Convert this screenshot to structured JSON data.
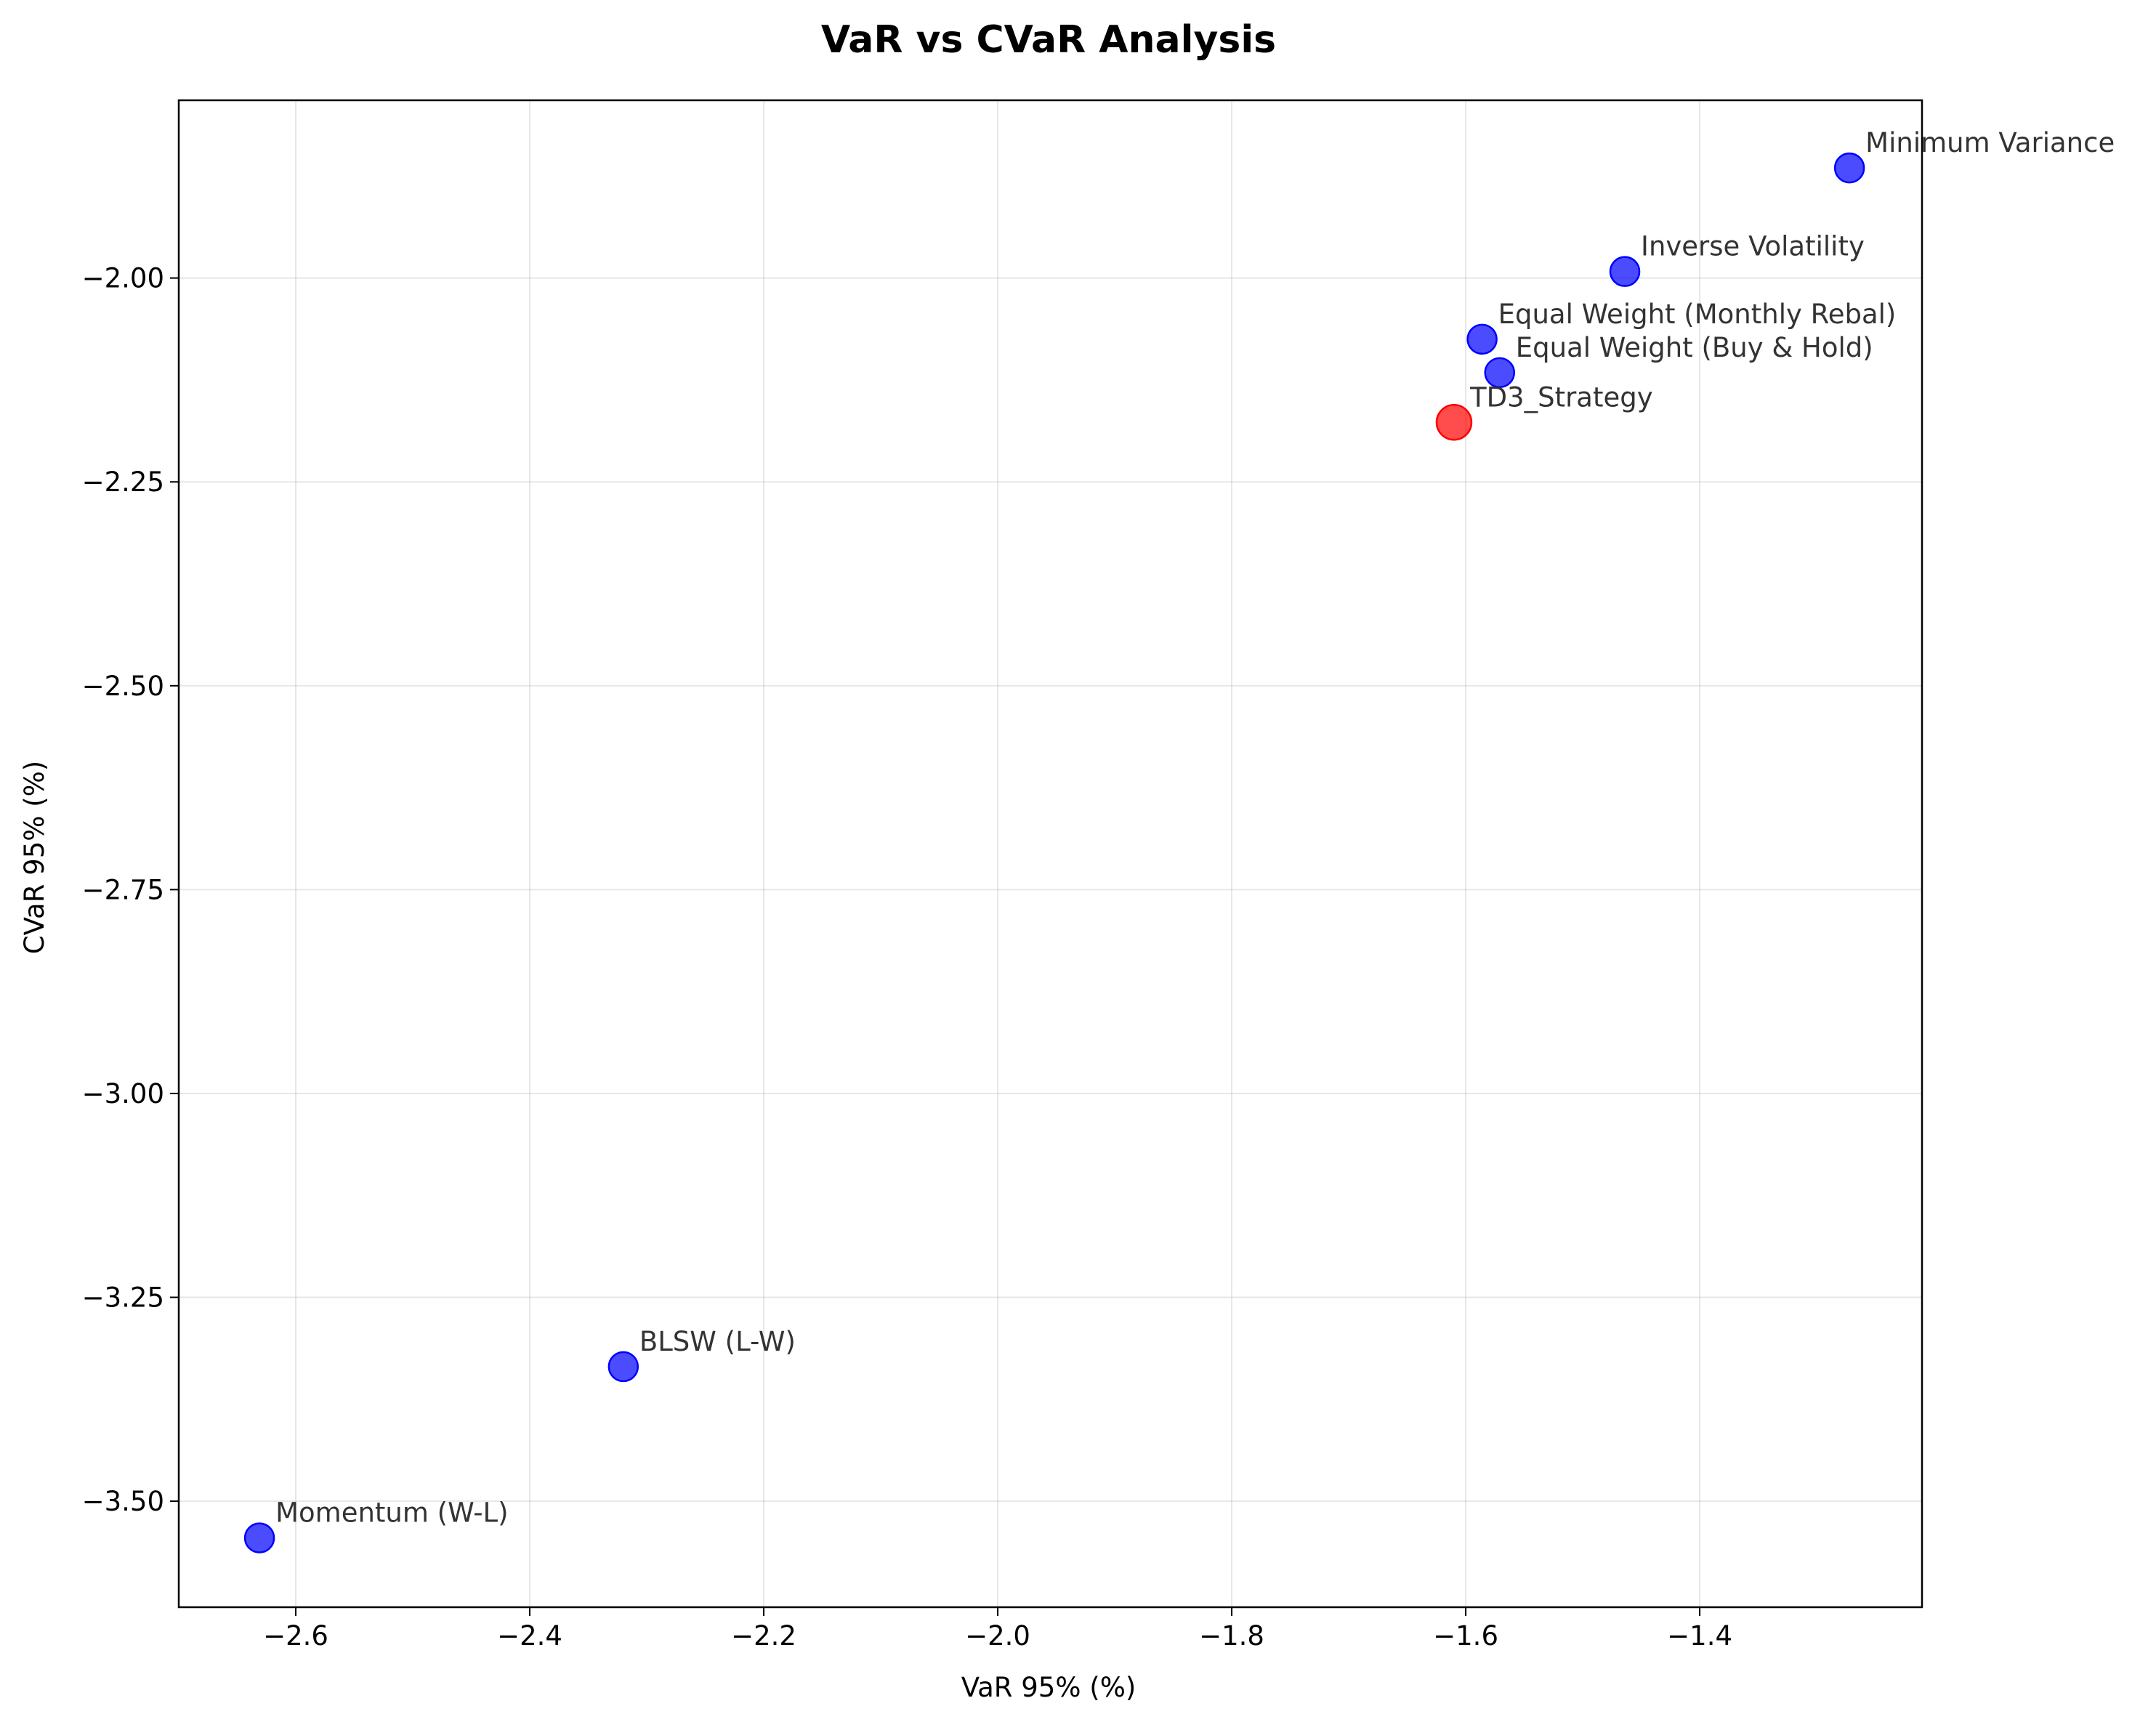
{
  "chart_data": {
    "type": "scatter",
    "title": "VaR vs CVaR Analysis",
    "xlabel": "VaR 95% (%)",
    "ylabel": "CVaR 95% (%)",
    "xlim": [
      -2.7,
      -1.21
    ],
    "ylim": [
      -3.63,
      -1.782
    ],
    "xticks": [
      -2.6,
      -2.4,
      -2.2,
      -2.0,
      -1.8,
      -1.6,
      -1.4
    ],
    "xtick_labels": [
      "−2.6",
      "−2.4",
      "−2.2",
      "−2.0",
      "−1.8",
      "−1.6",
      "−1.4"
    ],
    "yticks": [
      -2.0,
      -2.25,
      -2.5,
      -2.75,
      -3.0,
      -3.25,
      -3.5
    ],
    "ytick_labels": [
      "−2.00",
      "−2.25",
      "−2.50",
      "−2.75",
      "−3.00",
      "−3.25",
      "−3.50"
    ],
    "grid": true,
    "colors": {
      "highlight": "#ff0000",
      "default": "#0000ff"
    },
    "points": [
      {
        "label": "Minimum Variance",
        "x": -1.272,
        "y": -1.865,
        "highlight": false
      },
      {
        "label": "Inverse Volatility",
        "x": -1.464,
        "y": -1.992,
        "highlight": false
      },
      {
        "label": "Equal Weight (Monthly Rebal)",
        "x": -1.586,
        "y": -2.075,
        "highlight": false
      },
      {
        "label": "Equal Weight (Buy & Hold)",
        "x": -1.571,
        "y": -2.116,
        "highlight": false
      },
      {
        "label": "TD3_Strategy",
        "x": -1.61,
        "y": -2.177,
        "highlight": true
      },
      {
        "label": "BLSW (L-W)",
        "x": -2.32,
        "y": -3.335,
        "highlight": false
      },
      {
        "label": "Momentum (W-L)",
        "x": -2.631,
        "y": -3.545,
        "highlight": false
      }
    ]
  }
}
